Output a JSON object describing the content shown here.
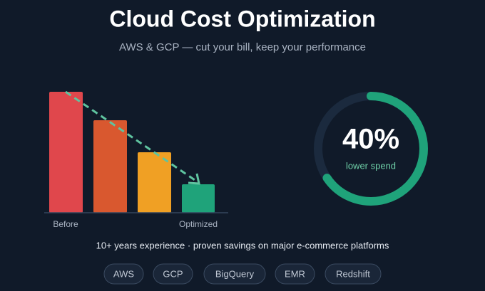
{
  "header": {
    "title": "Cloud Cost Optimization",
    "subtitle": "AWS & GCP — cut your bill, keep your performance"
  },
  "chart": {
    "labels": [
      "Before",
      "Optimized"
    ]
  },
  "stat": {
    "value": "40%",
    "caption": "lower spend"
  },
  "tagline": "10+ years experience · proven savings on major e-commerce platforms",
  "tags": [
    "AWS",
    "GCP",
    "BigQuery",
    "EMR",
    "Redshift"
  ]
}
